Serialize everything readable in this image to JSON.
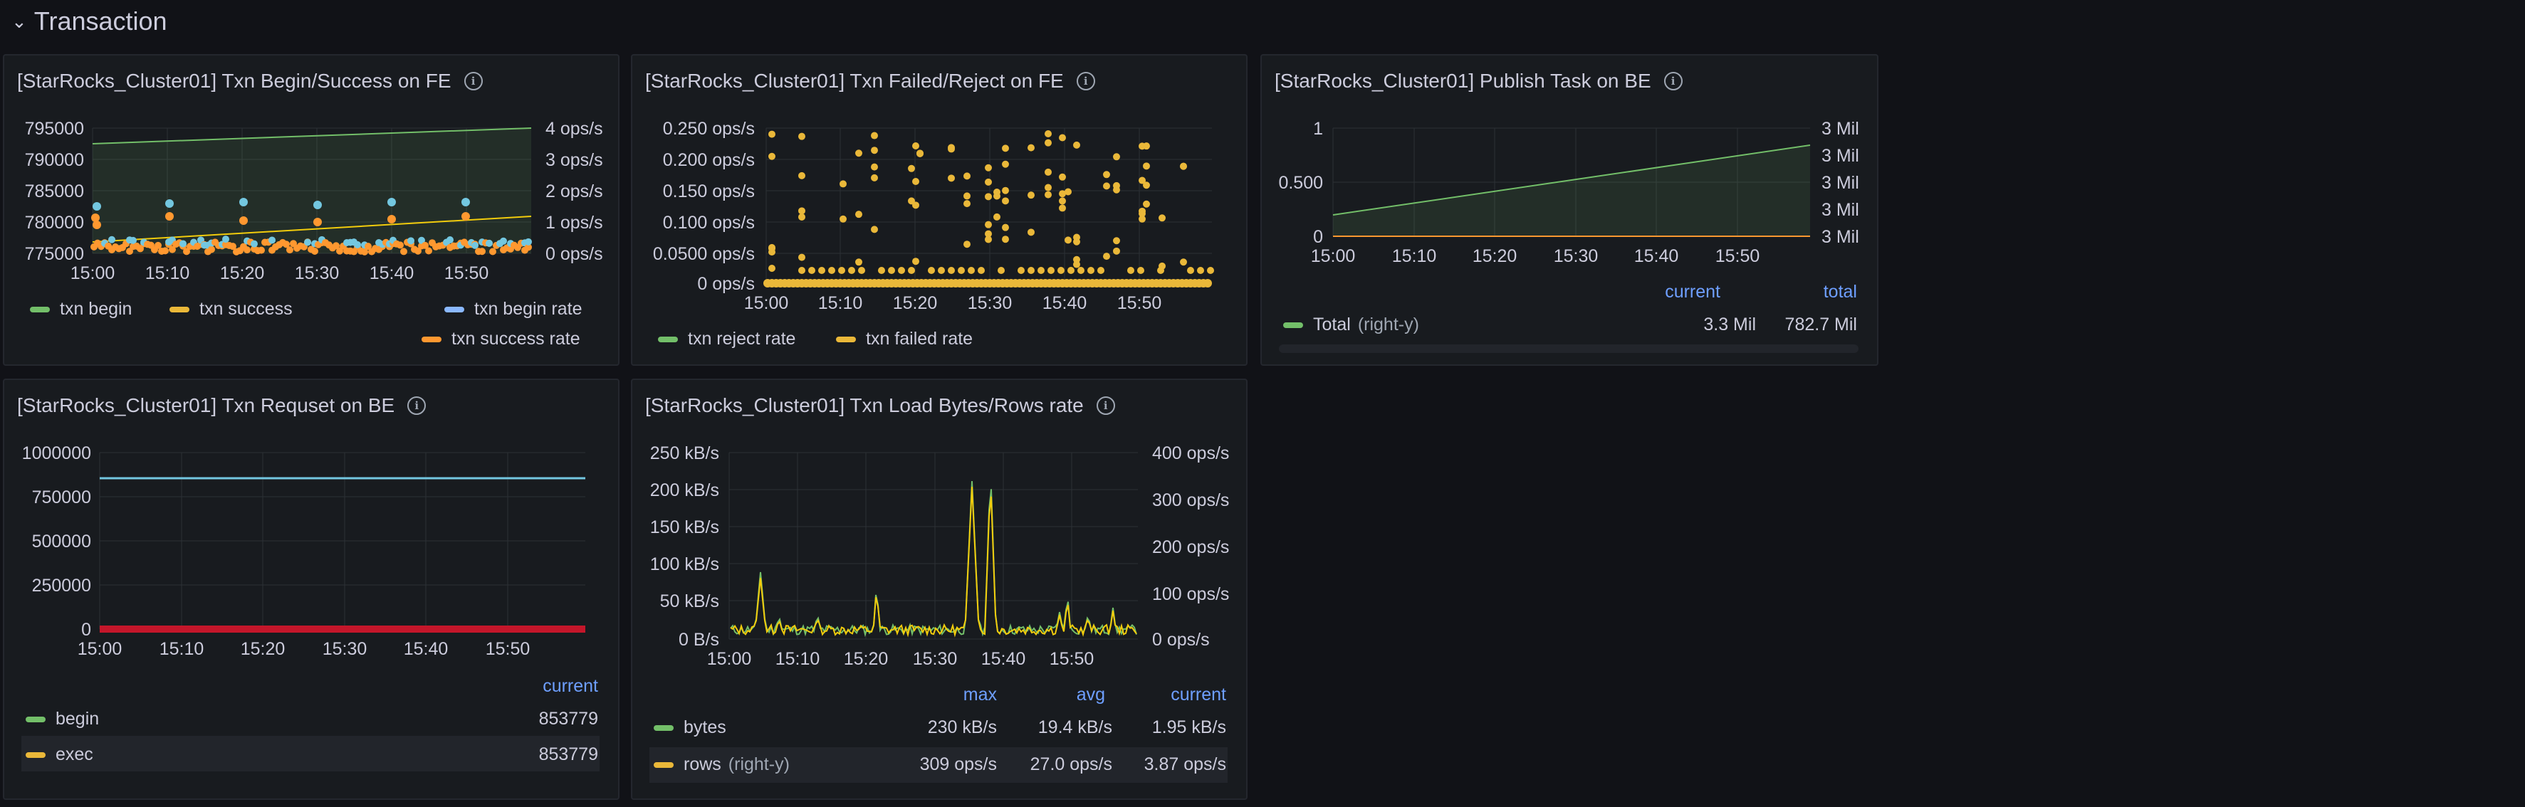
{
  "section": {
    "title": "Transaction"
  },
  "panels": {
    "p1": {
      "title": "[StarRocks_Cluster01] Txn Begin/Success on FE",
      "y_left": [
        "795000",
        "790000",
        "785000",
        "780000",
        "775000"
      ],
      "y_right": [
        "4 ops/s",
        "3 ops/s",
        "2 ops/s",
        "1 ops/s",
        "0 ops/s"
      ],
      "x": [
        "15:00",
        "15:10",
        "15:20",
        "15:30",
        "15:40",
        "15:50"
      ],
      "legend": [
        "txn begin",
        "txn success",
        "txn begin rate",
        "txn success rate"
      ]
    },
    "p2": {
      "title": "[StarRocks_Cluster01] Txn Failed/Reject on FE",
      "y_left": [
        "0.250 ops/s",
        "0.200 ops/s",
        "0.150 ops/s",
        "0.100 ops/s",
        "0.0500 ops/s",
        "0 ops/s"
      ],
      "x": [
        "15:00",
        "15:10",
        "15:20",
        "15:30",
        "15:40",
        "15:50"
      ],
      "legend": [
        "txn reject rate",
        "txn failed rate"
      ]
    },
    "p3": {
      "title": "[StarRocks_Cluster01] Publish Task on BE",
      "y_left": [
        "1",
        "0.500",
        "0"
      ],
      "y_right": [
        "3 Mil",
        "3 Mil",
        "3 Mil",
        "3 Mil",
        "3 Mil"
      ],
      "x": [
        "15:00",
        "15:10",
        "15:20",
        "15:30",
        "15:40",
        "15:50"
      ],
      "headers": {
        "current": "current",
        "total": "total"
      },
      "row": {
        "name": "Total",
        "axis": "(right-y)",
        "current": "3.3 Mil",
        "total": "782.7 Mil"
      }
    },
    "p4": {
      "title": "[StarRocks_Cluster01] Txn Requset on BE",
      "y_left": [
        "1000000",
        "750000",
        "500000",
        "250000",
        "0"
      ],
      "x": [
        "15:00",
        "15:10",
        "15:20",
        "15:30",
        "15:40",
        "15:50"
      ],
      "headers": {
        "current": "current"
      },
      "rows": [
        {
          "name": "begin",
          "current": "853779"
        },
        {
          "name": "exec",
          "current": "853779"
        }
      ]
    },
    "p5": {
      "title": "[StarRocks_Cluster01] Txn Load Bytes/Rows rate",
      "y_left": [
        "250 kB/s",
        "200 kB/s",
        "150 kB/s",
        "100 kB/s",
        "50 kB/s",
        "0 B/s"
      ],
      "y_right": [
        "400 ops/s",
        "300 ops/s",
        "200 ops/s",
        "100 ops/s",
        "0 ops/s"
      ],
      "x": [
        "15:00",
        "15:10",
        "15:20",
        "15:30",
        "15:40",
        "15:50"
      ],
      "headers": {
        "max": "max",
        "avg": "avg",
        "current": "current"
      },
      "rows": [
        {
          "name": "bytes",
          "axis": "",
          "max": "230 kB/s",
          "avg": "19.4 kB/s",
          "current": "1.95 kB/s"
        },
        {
          "name": "rows",
          "axis": "(right-y)",
          "max": "309 ops/s",
          "avg": "27.0 ops/s",
          "current": "3.87 ops/s"
        }
      ]
    }
  },
  "colors": {
    "green": "#73bf69",
    "yellow": "#f2cc0c",
    "lightblue": "#8ab8ff",
    "orange": "#ff9830",
    "cyan": "#73c7e0",
    "gold": "#eab839",
    "red": "#c4162a",
    "teal": "#6ed0e0"
  }
}
